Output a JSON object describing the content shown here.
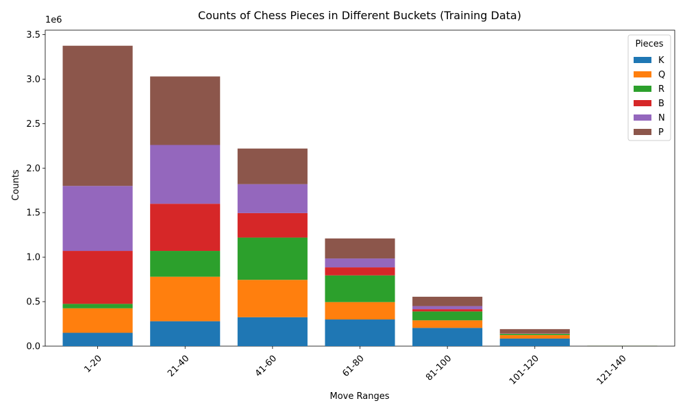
{
  "chart_data": {
    "type": "bar",
    "stacked": true,
    "title": "Counts of Chess Pieces in Different Buckets (Training Data)",
    "xlabel": "Move Ranges",
    "ylabel": "Counts",
    "y_offset_text": "1e6",
    "ylim": [
      0,
      3550000
    ],
    "yticks": [
      0,
      500000,
      1000000,
      1500000,
      2000000,
      2500000,
      3000000,
      3500000
    ],
    "ytick_labels": [
      "0.0",
      "0.5",
      "1.0",
      "1.5",
      "2.0",
      "2.5",
      "3.0",
      "3.5"
    ],
    "categories": [
      "1-20",
      "21-40",
      "41-60",
      "61-80",
      "81-100",
      "101-120",
      "121-140"
    ],
    "legend": {
      "title": "Pieces",
      "position": "top-right"
    },
    "series": [
      {
        "name": "K",
        "color": "#1f77b4",
        "values": [
          150000,
          280000,
          325000,
          300000,
          205000,
          85000,
          3000
        ]
      },
      {
        "name": "Q",
        "color": "#ff7f0e",
        "values": [
          275000,
          500000,
          420000,
          195000,
          85000,
          40000,
          2000
        ]
      },
      {
        "name": "R",
        "color": "#2ca02c",
        "values": [
          50000,
          290000,
          475000,
          300000,
          100000,
          15000,
          1000
        ]
      },
      {
        "name": "B",
        "color": "#d62728",
        "values": [
          595000,
          530000,
          275000,
          90000,
          25000,
          3000,
          0
        ]
      },
      {
        "name": "N",
        "color": "#9467bd",
        "values": [
          730000,
          660000,
          325000,
          100000,
          35000,
          3000,
          0
        ]
      },
      {
        "name": "P",
        "color": "#8c564b",
        "values": [
          1575000,
          770000,
          400000,
          225000,
          105000,
          45000,
          1000
        ]
      }
    ]
  }
}
